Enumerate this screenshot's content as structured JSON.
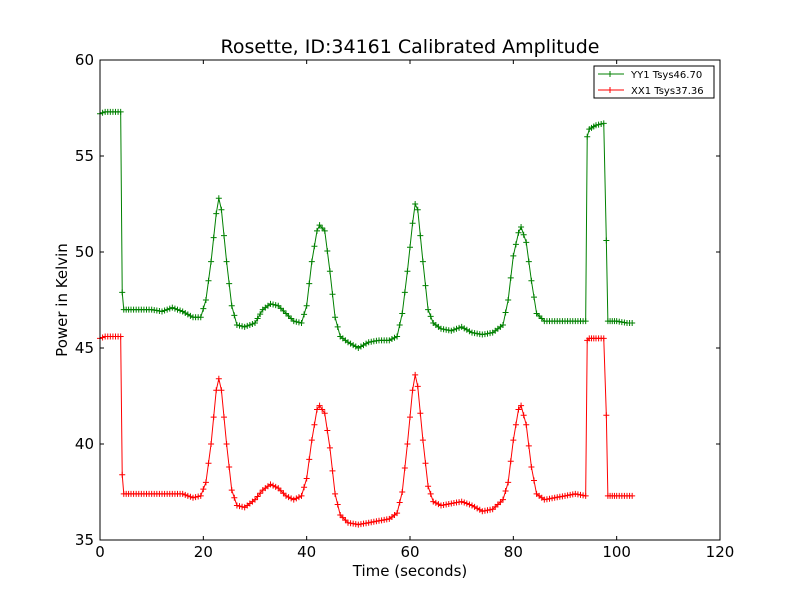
{
  "colors": {
    "yy1": "#008000",
    "xx1": "#ff0000",
    "axes": "#000000",
    "background": "#ffffff"
  },
  "chart_data": {
    "type": "line",
    "title": "Rosette, ID:34161 Calibrated Amplitude",
    "xlabel": "Time (seconds)",
    "ylabel": "Power in Kelvin",
    "xlim": [
      0,
      120
    ],
    "ylim": [
      35,
      60
    ],
    "xticks": [
      0,
      20,
      40,
      60,
      80,
      100,
      120
    ],
    "yticks": [
      35,
      40,
      45,
      50,
      55,
      60
    ],
    "grid": false,
    "marker": "+",
    "legend_position": "top-right",
    "series": [
      {
        "name": "YY1 Tsys46.70",
        "color": "#008000",
        "points": [
          [
            0,
            57.2
          ],
          [
            1,
            57.3
          ],
          [
            2,
            57.3
          ],
          [
            3,
            57.3
          ],
          [
            4,
            57.3
          ],
          [
            4.3,
            47.9
          ],
          [
            4.6,
            47.0
          ],
          [
            6,
            47.0
          ],
          [
            8,
            47.0
          ],
          [
            10,
            47.0
          ],
          [
            12,
            46.9
          ],
          [
            14,
            47.1
          ],
          [
            16,
            46.9
          ],
          [
            18,
            46.6
          ],
          [
            19.5,
            46.6
          ],
          [
            20.5,
            47.5
          ],
          [
            21.5,
            49.5
          ],
          [
            22.5,
            52.0
          ],
          [
            23,
            52.8
          ],
          [
            23.5,
            52.2
          ],
          [
            24.5,
            49.5
          ],
          [
            25.5,
            47.2
          ],
          [
            26.5,
            46.2
          ],
          [
            28,
            46.1
          ],
          [
            30,
            46.3
          ],
          [
            31.5,
            47.0
          ],
          [
            33,
            47.3
          ],
          [
            34.5,
            47.2
          ],
          [
            36,
            46.8
          ],
          [
            37.5,
            46.4
          ],
          [
            39,
            46.3
          ],
          [
            40,
            47.2
          ],
          [
            41,
            49.5
          ],
          [
            42,
            51.1
          ],
          [
            42.5,
            51.4
          ],
          [
            43.5,
            51.1
          ],
          [
            44.5,
            49.0
          ],
          [
            45.5,
            46.6
          ],
          [
            46.5,
            45.6
          ],
          [
            48,
            45.3
          ],
          [
            50,
            45.0
          ],
          [
            52,
            45.3
          ],
          [
            54,
            45.4
          ],
          [
            56,
            45.4
          ],
          [
            57.5,
            45.6
          ],
          [
            58.5,
            46.8
          ],
          [
            59.5,
            49.0
          ],
          [
            60.5,
            51.5
          ],
          [
            61,
            52.5
          ],
          [
            61.5,
            52.2
          ],
          [
            62.5,
            49.5
          ],
          [
            63.5,
            47.0
          ],
          [
            64.5,
            46.3
          ],
          [
            66,
            46.0
          ],
          [
            68,
            45.9
          ],
          [
            70,
            46.1
          ],
          [
            72,
            45.8
          ],
          [
            74,
            45.7
          ],
          [
            76,
            45.8
          ],
          [
            78,
            46.2
          ],
          [
            79,
            47.5
          ],
          [
            80,
            49.8
          ],
          [
            81,
            51.0
          ],
          [
            81.5,
            51.3
          ],
          [
            82.5,
            50.5
          ],
          [
            83.5,
            48.5
          ],
          [
            84.5,
            46.8
          ],
          [
            86,
            46.4
          ],
          [
            88,
            46.4
          ],
          [
            90,
            46.4
          ],
          [
            92,
            46.4
          ],
          [
            94,
            46.4
          ],
          [
            94.3,
            56.0
          ],
          [
            94.7,
            56.4
          ],
          [
            96,
            56.6
          ],
          [
            97.5,
            56.7
          ],
          [
            98,
            50.6
          ],
          [
            98.3,
            46.4
          ],
          [
            100,
            46.4
          ],
          [
            102,
            46.3
          ],
          [
            103,
            46.3
          ]
        ]
      },
      {
        "name": "XX1 Tsys37.36",
        "color": "#ff0000",
        "points": [
          [
            0,
            45.5
          ],
          [
            1,
            45.6
          ],
          [
            2,
            45.6
          ],
          [
            3,
            45.6
          ],
          [
            4,
            45.6
          ],
          [
            4.3,
            38.4
          ],
          [
            4.6,
            37.4
          ],
          [
            6,
            37.4
          ],
          [
            8,
            37.4
          ],
          [
            10,
            37.4
          ],
          [
            12,
            37.4
          ],
          [
            14,
            37.4
          ],
          [
            16,
            37.4
          ],
          [
            18,
            37.2
          ],
          [
            19.5,
            37.3
          ],
          [
            20.5,
            38.0
          ],
          [
            21.5,
            40.0
          ],
          [
            22.5,
            42.8
          ],
          [
            23,
            43.4
          ],
          [
            23.5,
            42.8
          ],
          [
            24.5,
            40.0
          ],
          [
            25.5,
            37.6
          ],
          [
            26.5,
            36.8
          ],
          [
            28,
            36.7
          ],
          [
            30,
            37.1
          ],
          [
            31.5,
            37.6
          ],
          [
            33,
            37.9
          ],
          [
            34.5,
            37.7
          ],
          [
            36,
            37.3
          ],
          [
            37.5,
            37.1
          ],
          [
            39,
            37.3
          ],
          [
            40,
            38.2
          ],
          [
            41,
            40.2
          ],
          [
            42,
            41.8
          ],
          [
            42.5,
            42.0
          ],
          [
            43.5,
            41.6
          ],
          [
            44.5,
            39.8
          ],
          [
            45.5,
            37.4
          ],
          [
            46.5,
            36.3
          ],
          [
            48,
            35.9
          ],
          [
            50,
            35.8
          ],
          [
            52,
            35.9
          ],
          [
            54,
            36.0
          ],
          [
            56,
            36.1
          ],
          [
            57.5,
            36.4
          ],
          [
            58.5,
            37.5
          ],
          [
            59.5,
            40.0
          ],
          [
            60.5,
            42.8
          ],
          [
            61,
            43.6
          ],
          [
            61.5,
            43.0
          ],
          [
            62.5,
            40.2
          ],
          [
            63.5,
            37.8
          ],
          [
            64.5,
            37.0
          ],
          [
            66,
            36.8
          ],
          [
            68,
            36.9
          ],
          [
            70,
            37.0
          ],
          [
            72,
            36.8
          ],
          [
            74,
            36.5
          ],
          [
            76,
            36.6
          ],
          [
            78,
            37.1
          ],
          [
            79,
            38.0
          ],
          [
            80,
            40.2
          ],
          [
            81,
            41.8
          ],
          [
            81.5,
            42.0
          ],
          [
            82.5,
            41.0
          ],
          [
            83.5,
            38.8
          ],
          [
            84.5,
            37.4
          ],
          [
            86,
            37.1
          ],
          [
            88,
            37.2
          ],
          [
            90,
            37.3
          ],
          [
            92,
            37.4
          ],
          [
            94,
            37.3
          ],
          [
            94.3,
            45.4
          ],
          [
            94.7,
            45.5
          ],
          [
            96,
            45.5
          ],
          [
            97.5,
            45.5
          ],
          [
            98,
            41.5
          ],
          [
            98.3,
            37.3
          ],
          [
            100,
            37.3
          ],
          [
            102,
            37.3
          ],
          [
            103,
            37.3
          ]
        ]
      }
    ]
  }
}
